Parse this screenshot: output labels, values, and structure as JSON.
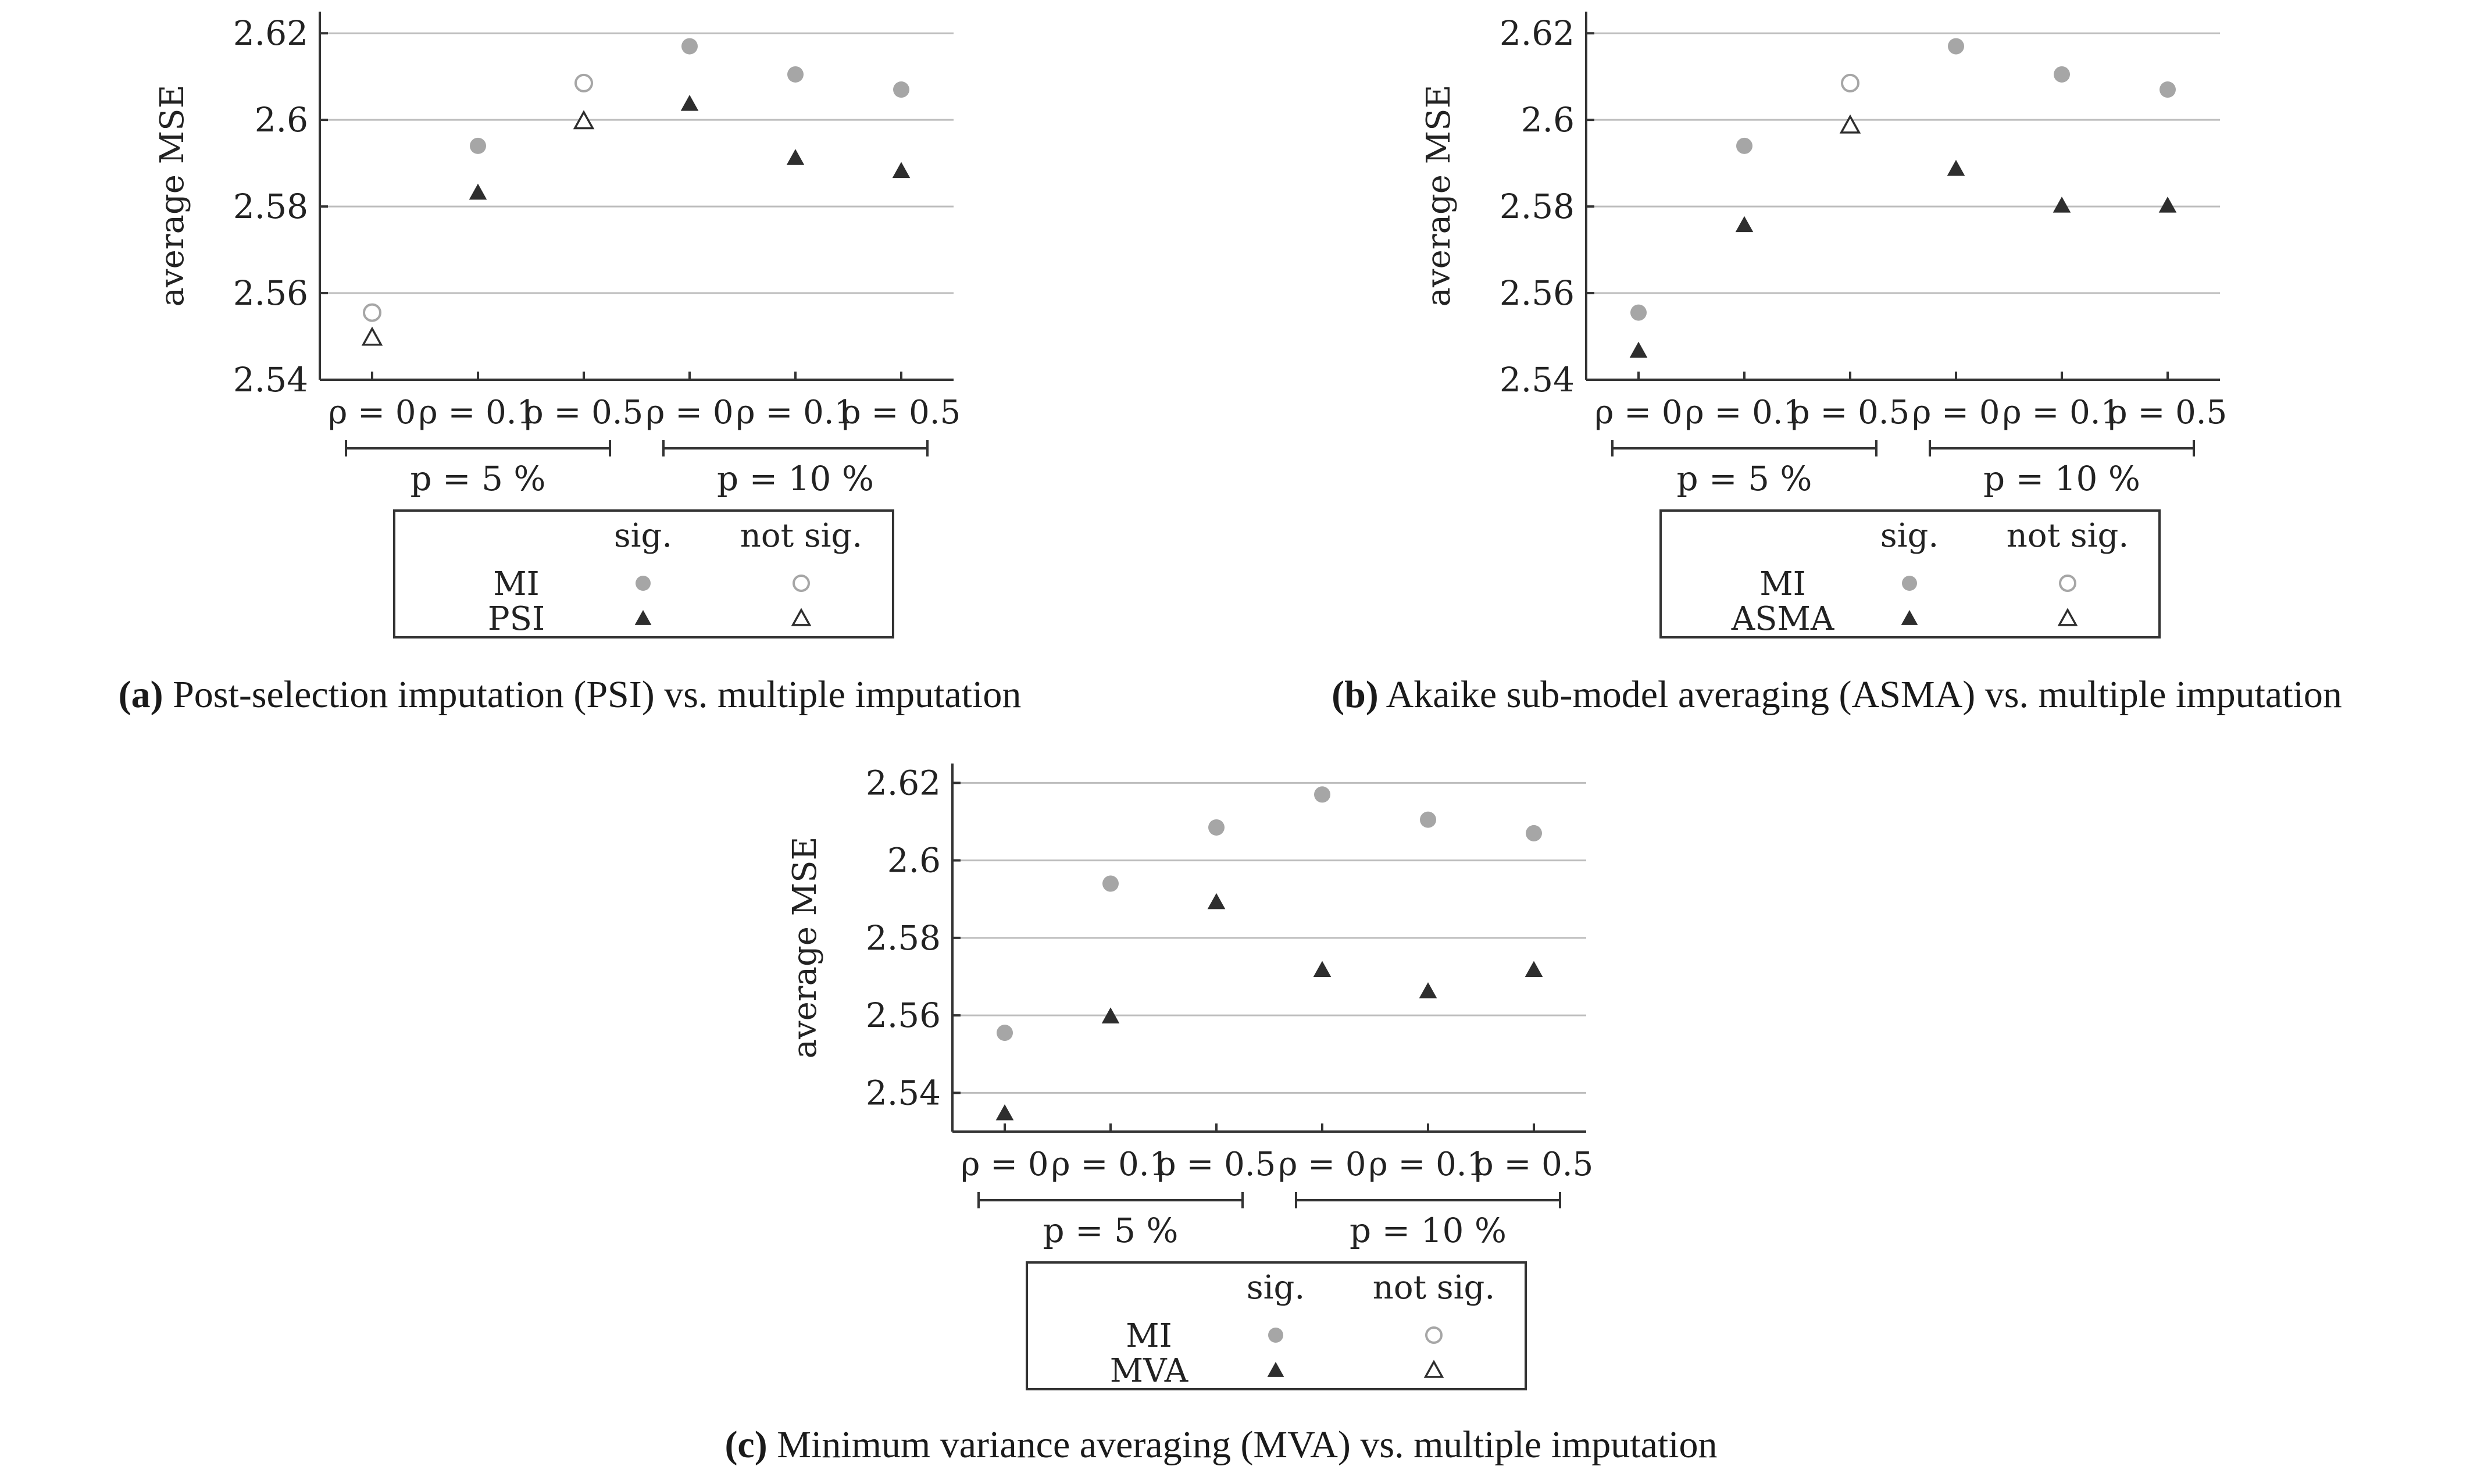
{
  "colors": {
    "mi_marker": "#a6a6a6",
    "other_marker": "#2e2e2e",
    "grid": "#bdbdbd",
    "axis": "#333333",
    "text": "#222222"
  },
  "legend_labels": {
    "sig": "sig.",
    "not_sig": "not sig."
  },
  "chart_data": [
    {
      "panel": "a",
      "type": "scatter",
      "ylabel": "average MSE",
      "ylim": [
        2.54,
        2.625
      ],
      "yticks": [
        2.54,
        2.56,
        2.58,
        2.6,
        2.62
      ],
      "ytick_labels": [
        "2.54",
        "2.56",
        "2.58",
        "2.6",
        "2.62"
      ],
      "categories": [
        "ρ = 0",
        "ρ = 0.1",
        "ρ = 0.5",
        "ρ = 0",
        "ρ = 0.1",
        "ρ = 0.5"
      ],
      "groups": [
        {
          "label": "p = 5 %",
          "from": 0,
          "to": 2
        },
        {
          "label": "p = 10 %",
          "from": 3,
          "to": 5
        }
      ],
      "series": [
        {
          "name": "MI",
          "marker": "circle",
          "values": [
            2.5555,
            2.594,
            2.6085,
            2.617,
            2.6105,
            2.607
          ],
          "significant": [
            false,
            true,
            false,
            true,
            true,
            true
          ]
        },
        {
          "name": "PSI",
          "marker": "triangle",
          "values": [
            2.5495,
            2.583,
            2.5995,
            2.6035,
            2.591,
            2.588
          ],
          "significant": [
            false,
            true,
            false,
            true,
            true,
            true
          ]
        }
      ],
      "legend": {
        "rows": [
          "MI",
          "PSI"
        ]
      },
      "caption_letter": "(a)",
      "caption_text": "Post-selection imputation (PSI) vs. multiple imputation"
    },
    {
      "panel": "b",
      "type": "scatter",
      "ylabel": "average MSE",
      "ylim": [
        2.54,
        2.625
      ],
      "yticks": [
        2.54,
        2.56,
        2.58,
        2.6,
        2.62
      ],
      "ytick_labels": [
        "2.54",
        "2.56",
        "2.58",
        "2.6",
        "2.62"
      ],
      "categories": [
        "ρ = 0",
        "ρ = 0.1",
        "ρ = 0.5",
        "ρ = 0",
        "ρ = 0.1",
        "ρ = 0.5"
      ],
      "groups": [
        {
          "label": "p = 5 %",
          "from": 0,
          "to": 2
        },
        {
          "label": "p = 10 %",
          "from": 3,
          "to": 5
        }
      ],
      "series": [
        {
          "name": "MI",
          "marker": "circle",
          "values": [
            2.5555,
            2.594,
            2.6085,
            2.617,
            2.6105,
            2.607
          ],
          "significant": [
            true,
            true,
            false,
            true,
            true,
            true
          ]
        },
        {
          "name": "ASMA",
          "marker": "triangle",
          "values": [
            2.5465,
            2.5755,
            2.5985,
            2.5885,
            2.58,
            2.58
          ],
          "significant": [
            true,
            true,
            false,
            true,
            true,
            true
          ]
        }
      ],
      "legend": {
        "rows": [
          "MI",
          "ASMA"
        ]
      },
      "caption_letter": "(b)",
      "caption_text": "Akaike sub-model averaging (ASMA) vs. multiple imputation"
    },
    {
      "panel": "c",
      "type": "scatter",
      "ylabel": "average MSE",
      "ylim": [
        2.53,
        2.625
      ],
      "yticks": [
        2.54,
        2.56,
        2.58,
        2.6,
        2.62
      ],
      "ytick_labels": [
        "2.54",
        "2.56",
        "2.58",
        "2.6",
        "2.62"
      ],
      "categories": [
        "ρ = 0",
        "ρ = 0.1",
        "ρ = 0.5",
        "ρ = 0",
        "ρ = 0.1",
        "ρ = 0.5"
      ],
      "groups": [
        {
          "label": "p = 5 %",
          "from": 0,
          "to": 2
        },
        {
          "label": "p = 10 %",
          "from": 3,
          "to": 5
        }
      ],
      "series": [
        {
          "name": "MI",
          "marker": "circle",
          "values": [
            2.5555,
            2.594,
            2.6085,
            2.617,
            2.6105,
            2.607
          ],
          "significant": [
            true,
            true,
            true,
            true,
            true,
            true
          ]
        },
        {
          "name": "MVA",
          "marker": "triangle",
          "values": [
            2.5345,
            2.5595,
            2.589,
            2.5715,
            2.566,
            2.5715
          ],
          "significant": [
            true,
            true,
            true,
            true,
            true,
            true
          ]
        }
      ],
      "legend": {
        "rows": [
          "MI",
          "MVA"
        ]
      },
      "caption_letter": "(c)",
      "caption_text": "Minimum variance averaging (MVA) vs. multiple imputation"
    }
  ]
}
